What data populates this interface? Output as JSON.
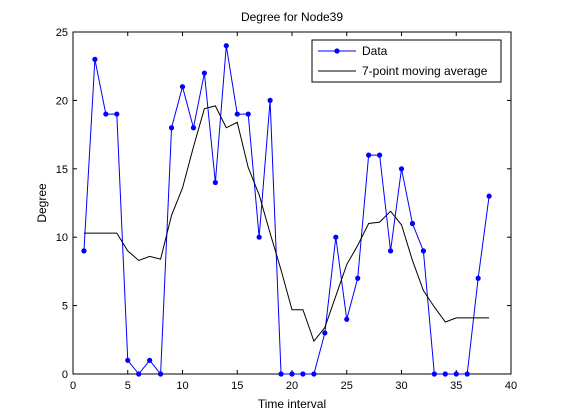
{
  "chart_data": {
    "type": "line",
    "title": "Degree for Node39",
    "xlabel": "Time interval",
    "ylabel": "Degree",
    "xlim": [
      0,
      40
    ],
    "ylim": [
      0,
      25
    ],
    "xticks": [
      0,
      5,
      10,
      15,
      20,
      25,
      30,
      35,
      40
    ],
    "yticks": [
      0,
      5,
      10,
      15,
      20,
      25
    ],
    "grid": false,
    "legend_position": "top-right",
    "series": [
      {
        "name": "Data",
        "color": "#0000ff",
        "marker": "dot",
        "x": [
          1,
          2,
          3,
          4,
          5,
          6,
          7,
          8,
          9,
          10,
          11,
          12,
          13,
          14,
          15,
          16,
          17,
          18,
          19,
          20,
          21,
          22,
          23,
          24,
          25,
          26,
          27,
          28,
          29,
          30,
          31,
          32,
          33,
          34,
          35,
          36,
          37,
          38
        ],
        "y": [
          9,
          23,
          19,
          19,
          1,
          0,
          1,
          0,
          18,
          21,
          18,
          22,
          14,
          24,
          19,
          19,
          10,
          20,
          0,
          0,
          0,
          0,
          3,
          10,
          4,
          7,
          16,
          16,
          9,
          15,
          11,
          9,
          0,
          0,
          0,
          0,
          7,
          13
        ]
      },
      {
        "name": "7-point moving average",
        "color": "#000000",
        "marker": "none",
        "x": [
          1,
          2,
          3,
          4,
          5,
          6,
          7,
          8,
          9,
          10,
          11,
          12,
          13,
          14,
          15,
          16,
          17,
          18,
          19,
          20,
          21,
          22,
          23,
          24,
          25,
          26,
          27,
          28,
          29,
          30,
          31,
          32,
          33,
          34,
          35,
          36,
          37,
          38
        ],
        "y": [
          10.3,
          10.3,
          10.3,
          10.3,
          9.0,
          8.3,
          8.6,
          8.4,
          11.6,
          13.6,
          16.6,
          19.4,
          19.6,
          18.0,
          18.4,
          15.1,
          13.1,
          10.3,
          7.6,
          4.7,
          4.7,
          2.4,
          3.4,
          5.7,
          8.0,
          9.4,
          11.0,
          11.1,
          11.9,
          10.9,
          8.3,
          6.1,
          4.9,
          3.8,
          4.1,
          4.1,
          4.1,
          4.1
        ]
      }
    ]
  }
}
